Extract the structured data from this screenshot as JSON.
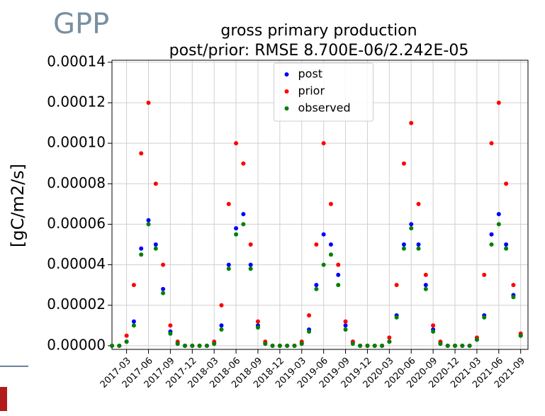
{
  "chart_data": {
    "type": "scatter",
    "header": "GPP",
    "title": "gross primary production",
    "subtitle": "post/prior: RMSE 8.700E-06/2.242E-05",
    "ylabel": "[gC/m2/s]",
    "x": [
      "2017-01",
      "2017-02",
      "2017-03",
      "2017-04",
      "2017-05",
      "2017-06",
      "2017-07",
      "2017-08",
      "2017-09",
      "2017-10",
      "2017-11",
      "2017-12",
      "2018-01",
      "2018-02",
      "2018-03",
      "2018-04",
      "2018-05",
      "2018-06",
      "2018-07",
      "2018-08",
      "2018-09",
      "2018-10",
      "2018-11",
      "2018-12",
      "2019-01",
      "2019-02",
      "2019-03",
      "2019-04",
      "2019-05",
      "2019-06",
      "2019-07",
      "2019-08",
      "2019-09",
      "2019-10",
      "2019-11",
      "2019-12",
      "2020-01",
      "2020-02",
      "2020-03",
      "2020-04",
      "2020-05",
      "2020-06",
      "2020-07",
      "2020-08",
      "2020-09",
      "2020-10",
      "2020-11",
      "2020-12",
      "2021-01",
      "2021-02",
      "2021-03",
      "2021-04",
      "2021-05",
      "2021-06",
      "2021-07",
      "2021-08",
      "2021-09"
    ],
    "series": [
      {
        "name": "post",
        "color": "#0000ff",
        "values": [
          0,
          0,
          2e-06,
          1.2e-05,
          4.8e-05,
          6.2e-05,
          5e-05,
          2.8e-05,
          7e-06,
          1e-06,
          0,
          0,
          0,
          0,
          1e-06,
          1e-05,
          4e-05,
          5.8e-05,
          6.5e-05,
          4e-05,
          1e-05,
          1e-06,
          0,
          0,
          0,
          0,
          1e-06,
          8e-06,
          3e-05,
          5.5e-05,
          5e-05,
          3.5e-05,
          1e-05,
          2e-06,
          0,
          0,
          0,
          0,
          2e-06,
          1.5e-05,
          5e-05,
          6e-05,
          5e-05,
          3e-05,
          8e-06,
          1e-06,
          0,
          0,
          0,
          0,
          3e-06,
          1.5e-05,
          5.5e-05,
          6.5e-05,
          5e-05,
          2.5e-05,
          5e-06
        ]
      },
      {
        "name": "prior",
        "color": "#ff0000",
        "values": [
          0,
          0,
          5e-06,
          3e-05,
          9.5e-05,
          0.00012,
          8e-05,
          4e-05,
          1e-05,
          2e-06,
          0,
          0,
          0,
          0,
          2e-06,
          2e-05,
          7e-05,
          0.0001,
          9e-05,
          5e-05,
          1.2e-05,
          2e-06,
          0,
          0,
          0,
          0,
          2e-06,
          1.5e-05,
          5e-05,
          0.0001,
          7e-05,
          4e-05,
          1.2e-05,
          2e-06,
          0,
          0,
          0,
          0,
          4e-06,
          3e-05,
          9e-05,
          0.00011,
          7e-05,
          3.5e-05,
          1e-05,
          2e-06,
          0,
          0,
          0,
          0,
          4e-06,
          3.5e-05,
          0.0001,
          0.00012,
          8e-05,
          3e-05,
          6e-06
        ]
      },
      {
        "name": "observed",
        "color": "#008000",
        "values": [
          0,
          0,
          2e-06,
          1e-05,
          4.5e-05,
          6e-05,
          4.8e-05,
          2.6e-05,
          6e-06,
          1e-06,
          0,
          0,
          0,
          0,
          1e-06,
          8e-06,
          3.8e-05,
          5.5e-05,
          6e-05,
          3.8e-05,
          9e-06,
          1e-06,
          0,
          0,
          0,
          0,
          1e-06,
          7e-06,
          2.8e-05,
          4e-05,
          4.5e-05,
          3e-05,
          8e-06,
          1e-06,
          0,
          0,
          0,
          0,
          2e-06,
          1.4e-05,
          4.8e-05,
          5.8e-05,
          4.8e-05,
          2.8e-05,
          7e-06,
          1e-06,
          0,
          0,
          0,
          0,
          3e-06,
          1.4e-05,
          5e-05,
          6e-05,
          4.8e-05,
          2.4e-05,
          5e-06
        ]
      }
    ],
    "xlim": [
      "2017-01",
      "2021-10"
    ],
    "xticks": [
      "2017-03",
      "2017-06",
      "2017-09",
      "2017-12",
      "2018-03",
      "2018-06",
      "2018-09",
      "2018-12",
      "2019-03",
      "2019-06",
      "2019-09",
      "2019-12",
      "2020-03",
      "2020-06",
      "2020-09",
      "2020-12",
      "2021-03",
      "2021-06",
      "2021-09"
    ],
    "ylim": [
      -1.8e-06,
      0.000141
    ],
    "yticks": [
      {
        "value": 0,
        "label": "0.00000"
      },
      {
        "value": 2e-05,
        "label": "0.00002"
      },
      {
        "value": 4e-05,
        "label": "0.00004"
      },
      {
        "value": 6e-05,
        "label": "0.00006"
      },
      {
        "value": 8e-05,
        "label": "0.00008"
      },
      {
        "value": 0.0001,
        "label": "0.00010"
      },
      {
        "value": 0.00012,
        "label": "0.00012"
      },
      {
        "value": 0.00014,
        "label": "0.00014"
      }
    ],
    "grid": true,
    "legend": "upper center"
  }
}
